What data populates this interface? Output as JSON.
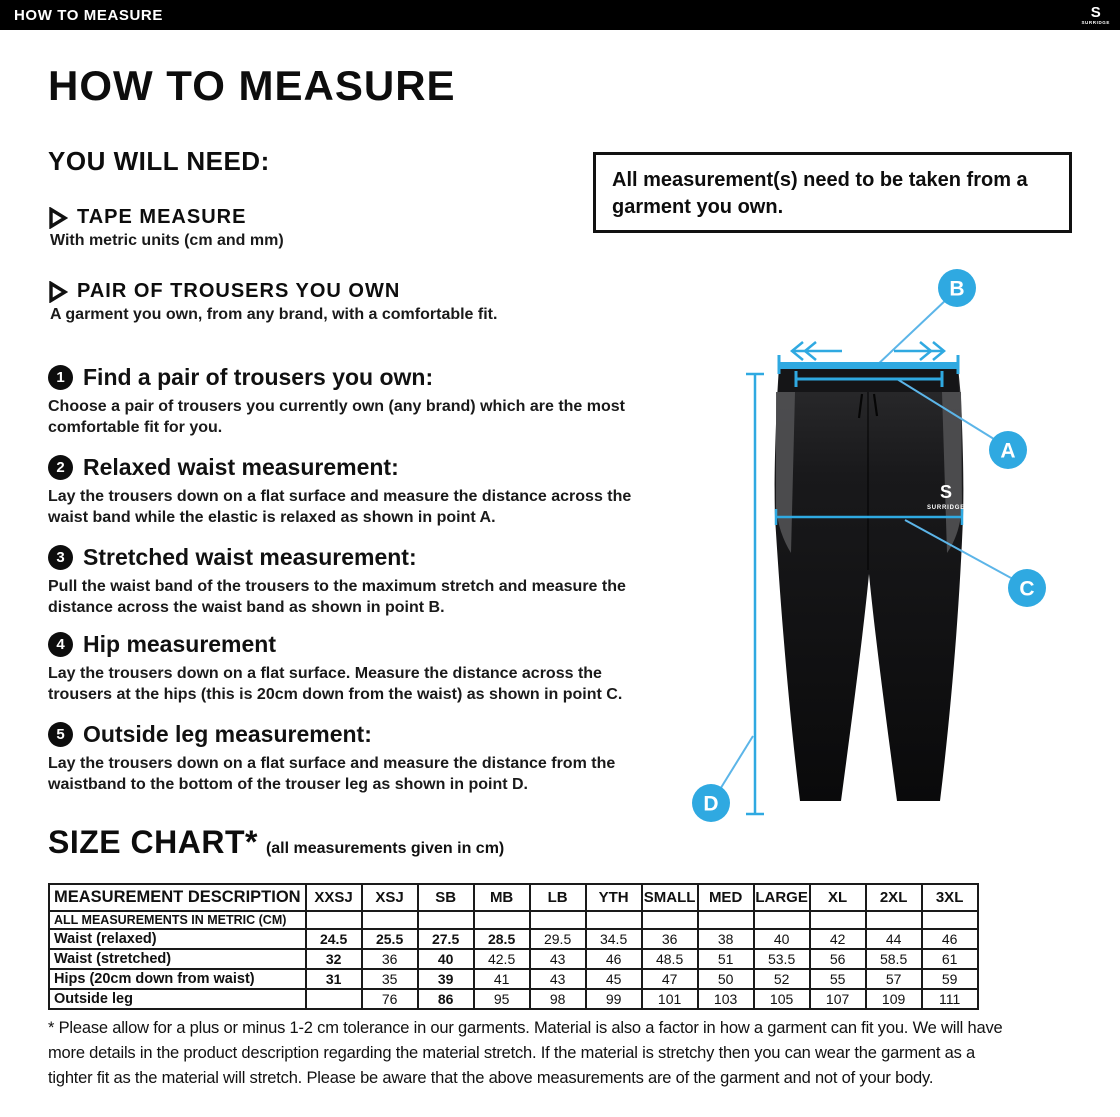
{
  "topbar": {
    "title": "HOW TO MEASURE",
    "brand": "SURRIDGE",
    "brand_initial": "S"
  },
  "page": {
    "title": "HOW TO MEASURE",
    "you_will_need": {
      "heading": "YOU WILL NEED:",
      "items": [
        {
          "title": "TAPE MEASURE",
          "description": "With metric units (cm and mm)"
        },
        {
          "title": "PAIR OF TROUSERS YOU OWN",
          "description": "A garment you own, from any brand, with a comfortable fit."
        }
      ]
    },
    "note": "All measurement(s) need to be taken from a garment you own.",
    "steps": [
      {
        "number": "1",
        "title": "Find a pair of trousers you own:",
        "body": "Choose a pair of trousers you currently own (any brand) which are the most comfortable fit for you."
      },
      {
        "number": "2",
        "title": "Relaxed waist measurement:",
        "body": "Lay the trousers down on a flat surface and measure the distance across the waist band while the elastic is relaxed as shown in point A."
      },
      {
        "number": "3",
        "title": "Stretched waist measurement:",
        "body": "Pull the waist band of the trousers to the maximum stretch and measure the distance across the waist band as shown in point B."
      },
      {
        "number": "4",
        "title": "Hip measurement",
        "body": "Lay the trousers down on a flat surface. Measure the distance across the trousers at the hips (this is 20cm down from the waist)  as shown in point C."
      },
      {
        "number": "5",
        "title": "Outside leg measurement:",
        "body": "Lay the trousers down on a flat surface and measure the distance from the waistband to the bottom of the trouser  leg as shown in point D."
      }
    ],
    "diagram": {
      "labels": {
        "a": "A",
        "b": "B",
        "c": "C",
        "d": "D"
      },
      "accent_color": "#2FA9E1",
      "garment_logo": "SURRIDGE",
      "garment_logo_initial": "S"
    },
    "size_chart": {
      "heading": "SIZE CHART*",
      "subheading": "(all measurements given in cm)",
      "columns": [
        "MEASUREMENT DESCRIPTION",
        "XXSJ",
        "XSJ",
        "SB",
        "MB",
        "LB",
        "YTH",
        "SMALL",
        "MED",
        "LARGE",
        "XL",
        "2XL",
        "3XL"
      ],
      "metric_row_label": "ALL MEASUREMENTS IN METRIC (CM)",
      "rows": [
        {
          "label": "Waist (relaxed)",
          "values": [
            "24.5",
            "25.5",
            "27.5",
            "28.5",
            "29.5",
            "34.5",
            "36",
            "38",
            "40",
            "42",
            "44",
            "46"
          ],
          "bold": [
            true,
            true,
            true,
            true,
            false,
            false,
            false,
            false,
            false,
            false,
            false,
            false
          ]
        },
        {
          "label": "Waist (stretched)",
          "values": [
            "32",
            "36",
            "40",
            "42.5",
            "43",
            "46",
            "48.5",
            "51",
            "53.5",
            "56",
            "58.5",
            "61"
          ],
          "bold": [
            true,
            false,
            true,
            false,
            false,
            false,
            false,
            false,
            false,
            false,
            false,
            false
          ]
        },
        {
          "label": "Hips (20cm down from waist)",
          "values": [
            "31",
            "35",
            "39",
            "41",
            "43",
            "45",
            "47",
            "50",
            "52",
            "55",
            "57",
            "59"
          ],
          "bold": [
            true,
            false,
            true,
            false,
            false,
            false,
            false,
            false,
            false,
            false,
            false,
            false
          ]
        },
        {
          "label": "Outside leg",
          "values": [
            "",
            "76",
            "86",
            "95",
            "98",
            "99",
            "101",
            "103",
            "105",
            "107",
            "109",
            "111"
          ],
          "bold": [
            false,
            false,
            true,
            false,
            false,
            false,
            false,
            false,
            false,
            false,
            false,
            false
          ]
        }
      ]
    },
    "footnote_lines": [
      "* Please allow for a plus or minus 1-2 cm tolerance in our garments. Material is also a factor in how a garment can fit you. We will have",
      "more details in the product description regarding the material stretch.  If the material is stretchy then you can wear the garment as a",
      "tighter fit as the material will stretch.  Please be aware that the above measurements are of the garment and not of your body."
    ]
  }
}
